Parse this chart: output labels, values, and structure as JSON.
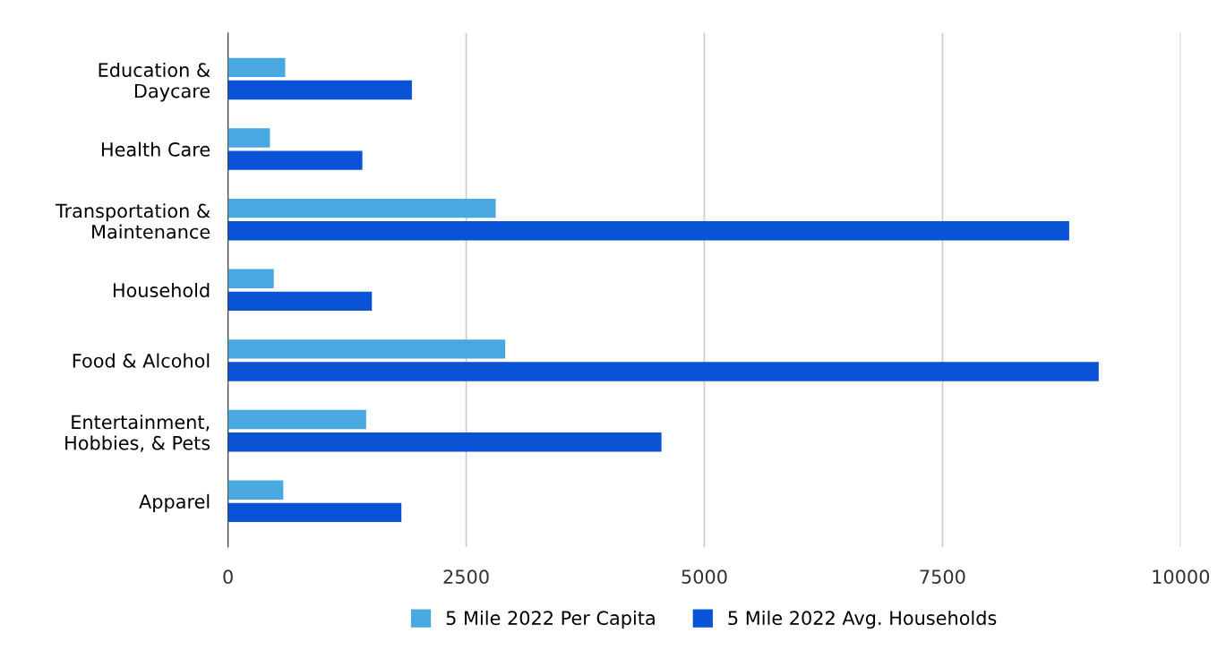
{
  "chart_data": {
    "type": "bar",
    "orientation": "horizontal",
    "categories": [
      "Education &\nDaycare",
      "Health Care",
      "Transportation &\nMaintenance",
      "Household",
      "Food & Alcohol",
      "Entertainment,\nHobbies, & Pets",
      "Apparel"
    ],
    "series": [
      {
        "name": "5 Mile 2022 Per Capita",
        "color": "#4aa8e0",
        "values": [
          600,
          440,
          2810,
          480,
          2910,
          1450,
          580
        ]
      },
      {
        "name": "5 Mile 2022 Avg. Households",
        "color": "#0a52d6",
        "values": [
          1930,
          1410,
          8830,
          1510,
          9140,
          4550,
          1820
        ]
      }
    ],
    "xlim": [
      0,
      10000
    ],
    "xticks": [
      0,
      2500,
      5000,
      7500,
      10000
    ],
    "grid": "x",
    "legend": "bottom"
  }
}
